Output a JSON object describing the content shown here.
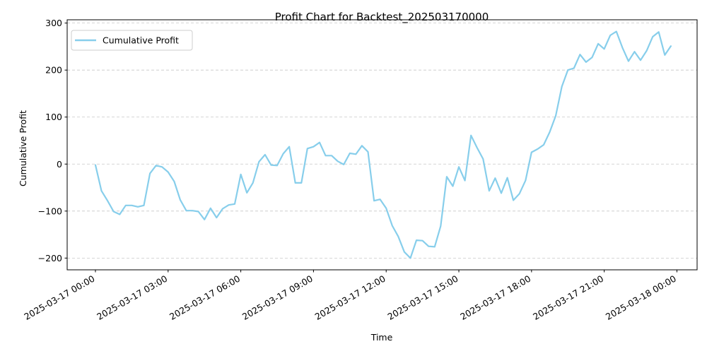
{
  "chart_data": {
    "type": "line",
    "title": "Profit Chart for Backtest_202503170000",
    "xlabel": "Time",
    "ylabel": "Cumulative Profit",
    "legend": {
      "position": "top-left",
      "entries": [
        "Cumulative Profit"
      ]
    },
    "grid": {
      "x": false,
      "y": true,
      "style": "dashed"
    },
    "x_tick_labels": [
      "2025-03-17 00:00",
      "2025-03-17 03:00",
      "2025-03-17 06:00",
      "2025-03-17 09:00",
      "2025-03-17 12:00",
      "2025-03-17 15:00",
      "2025-03-17 18:00",
      "2025-03-17 21:00",
      "2025-03-18 00:00"
    ],
    "y_ticks": [
      -200,
      -100,
      0,
      100,
      200,
      300
    ],
    "y_tick_labels": [
      "−200",
      "−100",
      "0",
      "100",
      "200",
      "300"
    ],
    "xlim": [
      "2025-03-16 22:50",
      "2025-03-18 00:50"
    ],
    "ylim": [
      -225,
      307
    ],
    "series": [
      {
        "name": "Cumulative Profit",
        "color": "#87ceeb",
        "x": [
          "2025-03-17 00:00",
          "2025-03-17 00:15",
          "2025-03-17 00:30",
          "2025-03-17 00:45",
          "2025-03-17 01:00",
          "2025-03-17 01:15",
          "2025-03-17 01:30",
          "2025-03-17 01:45",
          "2025-03-17 02:00",
          "2025-03-17 02:15",
          "2025-03-17 02:30",
          "2025-03-17 02:45",
          "2025-03-17 03:00",
          "2025-03-17 03:15",
          "2025-03-17 03:30",
          "2025-03-17 03:45",
          "2025-03-17 04:00",
          "2025-03-17 04:15",
          "2025-03-17 04:30",
          "2025-03-17 04:45",
          "2025-03-17 05:00",
          "2025-03-17 05:15",
          "2025-03-17 05:30",
          "2025-03-17 05:45",
          "2025-03-17 06:00",
          "2025-03-17 06:15",
          "2025-03-17 06:30",
          "2025-03-17 06:45",
          "2025-03-17 07:00",
          "2025-03-17 07:15",
          "2025-03-17 07:30",
          "2025-03-17 07:45",
          "2025-03-17 08:00",
          "2025-03-17 08:15",
          "2025-03-17 08:30",
          "2025-03-17 08:45",
          "2025-03-17 09:00",
          "2025-03-17 09:15",
          "2025-03-17 09:30",
          "2025-03-17 09:45",
          "2025-03-17 10:00",
          "2025-03-17 10:15",
          "2025-03-17 10:30",
          "2025-03-17 10:45",
          "2025-03-17 11:00",
          "2025-03-17 11:15",
          "2025-03-17 11:30",
          "2025-03-17 11:45",
          "2025-03-17 12:00",
          "2025-03-17 12:15",
          "2025-03-17 12:30",
          "2025-03-17 12:45",
          "2025-03-17 13:00",
          "2025-03-17 13:15",
          "2025-03-17 13:30",
          "2025-03-17 13:45",
          "2025-03-17 14:00",
          "2025-03-17 14:15",
          "2025-03-17 14:30",
          "2025-03-17 14:45",
          "2025-03-17 15:00",
          "2025-03-17 15:15",
          "2025-03-17 15:30",
          "2025-03-17 15:45",
          "2025-03-17 16:00",
          "2025-03-17 16:15",
          "2025-03-17 16:30",
          "2025-03-17 16:45",
          "2025-03-17 17:00",
          "2025-03-17 17:15",
          "2025-03-17 17:30",
          "2025-03-17 17:45",
          "2025-03-17 18:00",
          "2025-03-17 18:15",
          "2025-03-17 18:30",
          "2025-03-17 18:45",
          "2025-03-17 19:00",
          "2025-03-17 19:15",
          "2025-03-17 19:30",
          "2025-03-17 19:45",
          "2025-03-17 20:00",
          "2025-03-17 20:15",
          "2025-03-17 20:30",
          "2025-03-17 20:45",
          "2025-03-17 21:00",
          "2025-03-17 21:15",
          "2025-03-17 21:30",
          "2025-03-17 21:45",
          "2025-03-17 22:00",
          "2025-03-17 22:15",
          "2025-03-17 22:30",
          "2025-03-17 22:45",
          "2025-03-17 23:00",
          "2025-03-17 23:15",
          "2025-03-17 23:30",
          "2025-03-17 23:45"
        ],
        "values": [
          -2,
          -57,
          -78,
          -101,
          -107,
          -88,
          -88,
          -91,
          -88,
          -20,
          -3,
          -6,
          -17,
          -37,
          -76,
          -99,
          -99,
          -101,
          -118,
          -94,
          -114,
          -95,
          -87,
          -85,
          -22,
          -61,
          -40,
          5,
          20,
          -2,
          -3,
          22,
          37,
          -40,
          -40,
          33,
          37,
          46,
          18,
          18,
          6,
          -1,
          23,
          21,
          39,
          26,
          -78,
          -75,
          -94,
          -131,
          -154,
          -187,
          -200,
          -162,
          -163,
          -175,
          -176,
          -132,
          -27,
          -47,
          -6,
          -35,
          61,
          35,
          11,
          -57,
          -30,
          -62,
          -29,
          -77,
          -63,
          -35,
          25,
          32,
          41,
          68,
          103,
          165,
          200,
          204,
          233,
          217,
          227,
          256,
          245,
          274,
          282,
          248,
          219,
          239,
          221,
          241,
          271,
          281,
          232,
          251
        ]
      }
    ]
  }
}
